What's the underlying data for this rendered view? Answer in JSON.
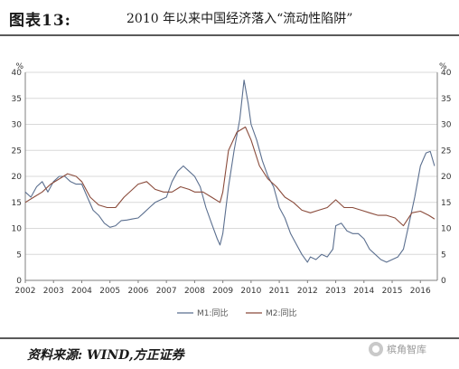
{
  "figure_label": "图表13:",
  "figure_title": "2010 年以来中国经济落入“流动性陷阱”",
  "source_text": "资料来源: WIND,方正证券",
  "watermark_left": "",
  "watermark_right": "槟角智库",
  "colors": {
    "m1": "#5b6f8f",
    "m2": "#8a4b3b",
    "axis": "#7f7f7f",
    "grid": "#d9d9d9"
  },
  "chart_data": {
    "type": "line",
    "title": "",
    "xlabel": "",
    "ylabel": "",
    "y_unit_left": "%",
    "y_unit_right": "%",
    "xlim": [
      2002,
      2016.6
    ],
    "ylim": [
      0,
      40
    ],
    "grid": true,
    "legend_position": "bottom",
    "x_ticks": [
      "2002",
      "2003",
      "2004",
      "2005",
      "2006",
      "2007",
      "2008",
      "2009",
      "2010",
      "2011",
      "2012",
      "2013",
      "2014",
      "2015",
      "2016"
    ],
    "y_ticks": [
      "0",
      "5",
      "10",
      "15",
      "20",
      "25",
      "30",
      "35",
      "40"
    ],
    "series": [
      {
        "name": "M1:同比",
        "color_key": "m1",
        "points": [
          [
            2002.0,
            17
          ],
          [
            2002.2,
            16
          ],
          [
            2002.4,
            18
          ],
          [
            2002.6,
            19
          ],
          [
            2002.8,
            17
          ],
          [
            2003.0,
            19
          ],
          [
            2003.2,
            20
          ],
          [
            2003.4,
            20
          ],
          [
            2003.6,
            19
          ],
          [
            2003.8,
            18.5
          ],
          [
            2004.0,
            18.5
          ],
          [
            2004.2,
            16
          ],
          [
            2004.4,
            13.5
          ],
          [
            2004.6,
            12.5
          ],
          [
            2004.8,
            11
          ],
          [
            2005.0,
            10.2
          ],
          [
            2005.2,
            10.5
          ],
          [
            2005.4,
            11.5
          ],
          [
            2005.6,
            11.6
          ],
          [
            2005.8,
            11.8
          ],
          [
            2006.0,
            12
          ],
          [
            2006.2,
            13
          ],
          [
            2006.4,
            14
          ],
          [
            2006.6,
            15
          ],
          [
            2006.8,
            15.5
          ],
          [
            2007.0,
            16
          ],
          [
            2007.2,
            19
          ],
          [
            2007.4,
            21
          ],
          [
            2007.6,
            22
          ],
          [
            2007.8,
            21
          ],
          [
            2008.0,
            20
          ],
          [
            2008.2,
            18
          ],
          [
            2008.4,
            14
          ],
          [
            2008.6,
            11
          ],
          [
            2008.8,
            8
          ],
          [
            2008.9,
            6.8
          ],
          [
            2009.0,
            9
          ],
          [
            2009.2,
            18
          ],
          [
            2009.4,
            25
          ],
          [
            2009.6,
            31
          ],
          [
            2009.75,
            38.5
          ],
          [
            2009.9,
            34
          ],
          [
            2010.0,
            30
          ],
          [
            2010.2,
            27
          ],
          [
            2010.4,
            23
          ],
          [
            2010.6,
            20
          ],
          [
            2010.8,
            18
          ],
          [
            2011.0,
            14
          ],
          [
            2011.2,
            12
          ],
          [
            2011.4,
            9
          ],
          [
            2011.6,
            7
          ],
          [
            2011.8,
            5
          ],
          [
            2012.0,
            3.5
          ],
          [
            2012.1,
            4.5
          ],
          [
            2012.3,
            4
          ],
          [
            2012.5,
            5
          ],
          [
            2012.7,
            4.5
          ],
          [
            2012.9,
            6
          ],
          [
            2013.0,
            10.5
          ],
          [
            2013.2,
            11
          ],
          [
            2013.4,
            9.5
          ],
          [
            2013.6,
            9
          ],
          [
            2013.8,
            9
          ],
          [
            2014.0,
            8
          ],
          [
            2014.2,
            6
          ],
          [
            2014.4,
            5
          ],
          [
            2014.6,
            4
          ],
          [
            2014.8,
            3.5
          ],
          [
            2015.0,
            4
          ],
          [
            2015.2,
            4.5
          ],
          [
            2015.4,
            6
          ],
          [
            2015.6,
            11
          ],
          [
            2015.8,
            16
          ],
          [
            2016.0,
            22
          ],
          [
            2016.2,
            24.5
          ],
          [
            2016.35,
            24.8
          ],
          [
            2016.5,
            22
          ]
        ]
      },
      {
        "name": "M2:同比",
        "color_key": "m2",
        "points": [
          [
            2002.0,
            15
          ],
          [
            2002.3,
            16
          ],
          [
            2002.6,
            17
          ],
          [
            2002.9,
            18.5
          ],
          [
            2003.2,
            19.5
          ],
          [
            2003.5,
            20.5
          ],
          [
            2003.8,
            20
          ],
          [
            2004.0,
            19
          ],
          [
            2004.3,
            16
          ],
          [
            2004.6,
            14.5
          ],
          [
            2004.9,
            14
          ],
          [
            2005.2,
            14
          ],
          [
            2005.5,
            16
          ],
          [
            2005.8,
            17.5
          ],
          [
            2006.0,
            18.5
          ],
          [
            2006.3,
            19
          ],
          [
            2006.6,
            17.5
          ],
          [
            2006.9,
            17
          ],
          [
            2007.2,
            17
          ],
          [
            2007.5,
            18
          ],
          [
            2007.8,
            17.5
          ],
          [
            2008.0,
            17
          ],
          [
            2008.3,
            17
          ],
          [
            2008.6,
            16
          ],
          [
            2008.9,
            15
          ],
          [
            2009.0,
            17
          ],
          [
            2009.2,
            25
          ],
          [
            2009.5,
            28.5
          ],
          [
            2009.8,
            29.5
          ],
          [
            2010.0,
            27
          ],
          [
            2010.3,
            22
          ],
          [
            2010.6,
            19.5
          ],
          [
            2010.9,
            18
          ],
          [
            2011.2,
            16
          ],
          [
            2011.5,
            15
          ],
          [
            2011.8,
            13.5
          ],
          [
            2012.1,
            13
          ],
          [
            2012.4,
            13.5
          ],
          [
            2012.7,
            14
          ],
          [
            2013.0,
            15.5
          ],
          [
            2013.3,
            14
          ],
          [
            2013.6,
            14
          ],
          [
            2013.9,
            13.5
          ],
          [
            2014.2,
            13
          ],
          [
            2014.5,
            12.5
          ],
          [
            2014.8,
            12.5
          ],
          [
            2015.1,
            12
          ],
          [
            2015.4,
            10.5
          ],
          [
            2015.7,
            13
          ],
          [
            2016.0,
            13.3
          ],
          [
            2016.3,
            12.5
          ],
          [
            2016.5,
            11.8
          ]
        ]
      }
    ]
  }
}
